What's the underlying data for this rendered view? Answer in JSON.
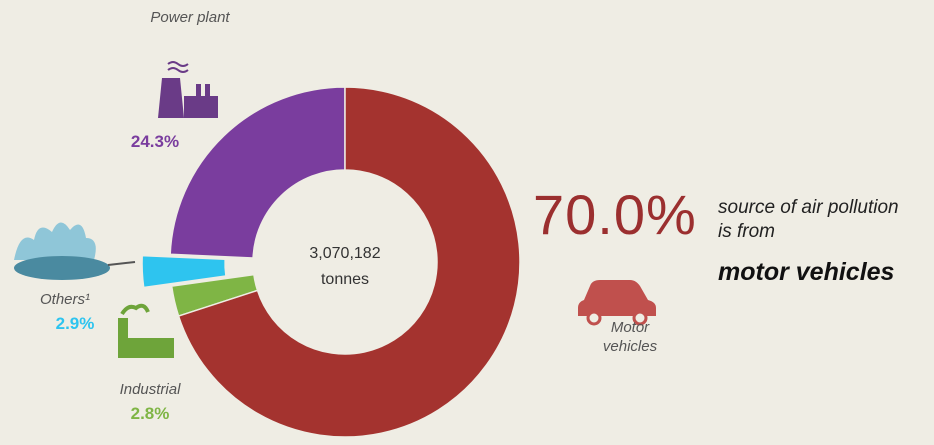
{
  "chart_data": {
    "type": "donut",
    "categories": [
      "Motor vehicles",
      "Industrial",
      "Others¹",
      "Power plant"
    ],
    "values": [
      70.0,
      2.8,
      2.9,
      24.3
    ],
    "value_labels": [
      "70.0%",
      "2.8%",
      "2.9%",
      "24.3%"
    ],
    "colors": [
      "#a4332f",
      "#7fb545",
      "#2ec4ef",
      "#7a3d9e"
    ],
    "exploded": [
      false,
      false,
      true,
      false
    ],
    "center_total": "3,070,182",
    "center_unit": "tonnes",
    "headline_text": "source of air pollution is from",
    "headline_emphasis": "motor vehicles"
  }
}
